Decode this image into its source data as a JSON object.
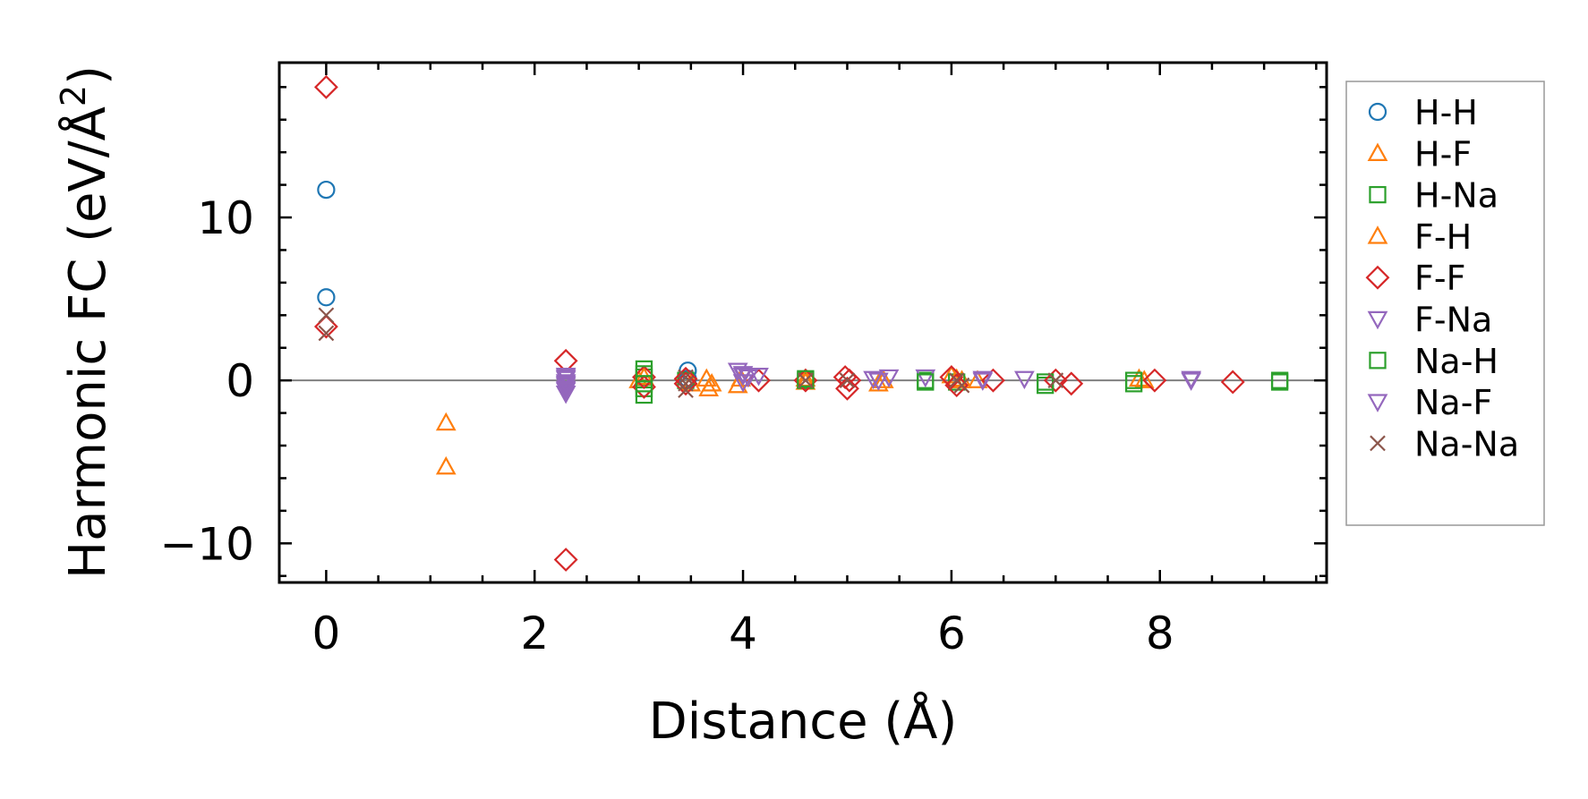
{
  "chart_data": {
    "type": "scatter",
    "title": "",
    "xlabel": "Distance (Å)",
    "ylabel_prefix": "Harmonic FC (eV/Å",
    "ylabel_sup": "2",
    "ylabel_suffix": ")",
    "xlim": [
      -0.45,
      9.6
    ],
    "ylim": [
      -12.4,
      19.5
    ],
    "xticks": [
      0,
      2,
      4,
      6,
      8
    ],
    "xtick_labels": [
      "0",
      "2",
      "4",
      "6",
      "8"
    ],
    "yticks": [
      -10,
      0,
      10
    ],
    "ytick_labels": [
      "−10",
      "0",
      "10"
    ],
    "zero_line": true,
    "legend_position": "right-outside",
    "series": [
      {
        "name": "H-H",
        "marker": "circle",
        "color": "#1f77b4",
        "filled": false,
        "points": [
          [
            0,
            11.7
          ],
          [
            0,
            5.1
          ],
          [
            3.47,
            0.6
          ],
          [
            3.47,
            0.1
          ]
        ]
      },
      {
        "name": "H-F",
        "marker": "triangle-up",
        "color": "#ff7f0e",
        "filled": false,
        "points": [
          [
            1.15,
            -2.6
          ],
          [
            1.15,
            -5.3
          ],
          [
            3.0,
            0.0
          ],
          [
            3.65,
            0.1
          ],
          [
            3.67,
            -0.5
          ],
          [
            3.95,
            -0.3
          ],
          [
            4.6,
            -0.1
          ],
          [
            5.3,
            -0.2
          ],
          [
            6.0,
            0.3
          ],
          [
            6.1,
            0.0
          ],
          [
            6.25,
            0.0
          ],
          [
            7.8,
            0.1
          ]
        ]
      },
      {
        "name": "H-Na",
        "marker": "square",
        "color": "#2ca02c",
        "filled": false,
        "points": [
          [
            3.05,
            0.7
          ],
          [
            3.05,
            0.2
          ],
          [
            3.05,
            -0.5
          ],
          [
            3.05,
            -0.9
          ],
          [
            3.45,
            0.0
          ],
          [
            4.6,
            0.0
          ],
          [
            5.75,
            0.0
          ],
          [
            6.05,
            -0.1
          ],
          [
            6.9,
            -0.3
          ],
          [
            7.75,
            -0.2
          ],
          [
            9.15,
            -0.1
          ]
        ]
      },
      {
        "name": "F-H",
        "marker": "triangle-up",
        "color": "#ff7f0e",
        "filled": false,
        "points": [
          [
            3.05,
            0.2
          ],
          [
            3.5,
            -0.2
          ],
          [
            3.7,
            -0.2
          ],
          [
            3.98,
            0.1
          ],
          [
            4.6,
            0.1
          ],
          [
            5.35,
            0.0
          ],
          [
            6.05,
            0.1
          ],
          [
            7.85,
            0.0
          ]
        ]
      },
      {
        "name": "F-F",
        "marker": "diamond",
        "color": "#d62728",
        "filled": false,
        "points": [
          [
            0,
            18.0
          ],
          [
            0,
            3.3
          ],
          [
            2.3,
            1.2
          ],
          [
            2.3,
            -11.0
          ],
          [
            3.05,
            0.2
          ],
          [
            3.05,
            -0.4
          ],
          [
            3.45,
            0.1
          ],
          [
            3.45,
            -0.2
          ],
          [
            4.15,
            0.0
          ],
          [
            4.6,
            0.0
          ],
          [
            4.98,
            0.2
          ],
          [
            5.0,
            -0.5
          ],
          [
            5.02,
            0.0
          ],
          [
            6.0,
            0.2
          ],
          [
            6.05,
            -0.3
          ],
          [
            6.4,
            0.0
          ],
          [
            7.0,
            0.0
          ],
          [
            7.15,
            -0.2
          ],
          [
            7.95,
            0.0
          ],
          [
            8.7,
            -0.1
          ]
        ]
      },
      {
        "name": "F-Na",
        "marker": "triangle-down",
        "color": "#9467bd",
        "filled": false,
        "points": [
          [
            2.3,
            0.3
          ],
          [
            2.3,
            0.1
          ],
          [
            2.3,
            -0.1
          ],
          [
            2.3,
            -0.3
          ],
          [
            2.3,
            -0.5
          ],
          [
            2.3,
            -0.8
          ],
          [
            3.95,
            0.6
          ],
          [
            4.0,
            0.4
          ],
          [
            4.05,
            0.2
          ],
          [
            4.15,
            0.3
          ],
          [
            5.25,
            0.1
          ],
          [
            5.4,
            0.2
          ],
          [
            5.75,
            0.2
          ],
          [
            6.3,
            0.1
          ],
          [
            6.7,
            0.1
          ],
          [
            8.3,
            0.1
          ]
        ]
      },
      {
        "name": "Na-H",
        "marker": "square",
        "color": "#2ca02c",
        "filled": false,
        "points": [
          [
            3.05,
            0.4
          ],
          [
            3.05,
            -0.2
          ],
          [
            4.6,
            0.1
          ],
          [
            5.75,
            -0.1
          ],
          [
            6.9,
            -0.1
          ],
          [
            7.75,
            0.0
          ],
          [
            9.15,
            0.0
          ]
        ]
      },
      {
        "name": "Na-F",
        "marker": "triangle-down",
        "color": "#9467bd",
        "filled": false,
        "points": [
          [
            2.3,
            0.2
          ],
          [
            2.3,
            -0.2
          ],
          [
            2.3,
            -0.6
          ],
          [
            4.0,
            0.3
          ],
          [
            4.0,
            -0.1
          ],
          [
            5.3,
            0.0
          ],
          [
            6.3,
            0.0
          ],
          [
            8.3,
            0.0
          ]
        ]
      },
      {
        "name": "Na-Na",
        "marker": "x",
        "color": "#8c564b",
        "filled": false,
        "points": [
          [
            0,
            4.0
          ],
          [
            0,
            2.9
          ],
          [
            3.45,
            -0.6
          ],
          [
            3.45,
            -0.2
          ],
          [
            3.45,
            0.2
          ],
          [
            4.6,
            0.0
          ],
          [
            5.0,
            0.0
          ],
          [
            6.05,
            0.0
          ],
          [
            6.1,
            -0.3
          ],
          [
            7.0,
            0.0
          ]
        ]
      }
    ]
  }
}
